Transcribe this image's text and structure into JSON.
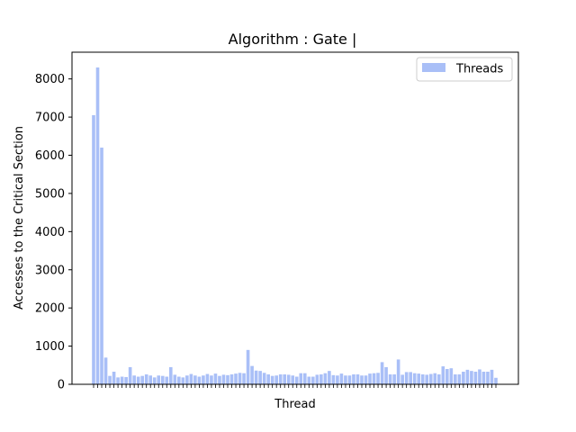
{
  "chart_data": {
    "type": "bar",
    "title": "Algorithm : Gate |",
    "xlabel": "Thread",
    "ylabel": "Accesses to the Critical Section",
    "ylim": [
      0,
      8700
    ],
    "yticks": [
      0,
      1000,
      2000,
      3000,
      4000,
      5000,
      6000,
      7000,
      8000
    ],
    "grid": false,
    "legend": {
      "placement": "top-right",
      "entries": [
        "Threads"
      ]
    },
    "colors": {
      "bar": "#a9bff7",
      "axis": "#000000"
    },
    "series": [
      {
        "name": "Threads",
        "values": [
          7050,
          8300,
          6200,
          700,
          220,
          330,
          180,
          200,
          190,
          450,
          230,
          200,
          220,
          260,
          230,
          180,
          230,
          220,
          200,
          450,
          250,
          200,
          180,
          230,
          270,
          230,
          200,
          230,
          270,
          230,
          280,
          220,
          250,
          240,
          260,
          280,
          300,
          290,
          900,
          480,
          360,
          350,
          300,
          260,
          220,
          230,
          260,
          260,
          250,
          230,
          200,
          290,
          290,
          200,
          200,
          250,
          260,
          290,
          350,
          240,
          230,
          280,
          230,
          230,
          260,
          260,
          230,
          230,
          280,
          290,
          300,
          580,
          450,
          260,
          260,
          650,
          250,
          320,
          320,
          290,
          280,
          260,
          250,
          270,
          290,
          260,
          470,
          400,
          420,
          260,
          260,
          330,
          380,
          350,
          330,
          390,
          330,
          330,
          380,
          170
        ]
      }
    ]
  }
}
